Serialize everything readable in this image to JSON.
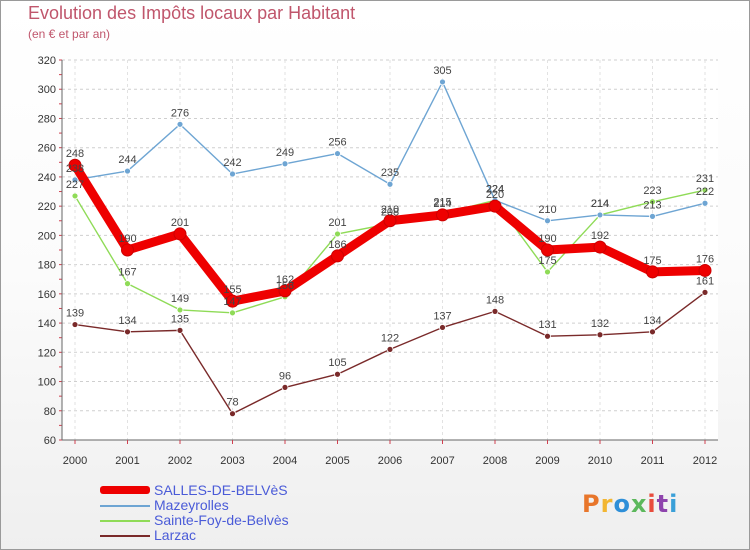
{
  "title": "Evolution des Impôts locaux par Habitant",
  "subtitle": "(en € et par an)",
  "logo_text": "Proxiti",
  "logo_colors": [
    "#e8762b",
    "#f2b632",
    "#2e8fd8",
    "#5cb85c",
    "#e84c3d",
    "#8e44ad",
    "#3aa0d8"
  ],
  "chart_data": {
    "type": "line",
    "title": "Evolution des Impôts locaux par Habitant",
    "subtitle": "(en € et par an)",
    "xlabel": "",
    "ylabel": "",
    "ylim": [
      60,
      320
    ],
    "yticks": [
      60,
      80,
      100,
      120,
      140,
      160,
      180,
      200,
      220,
      240,
      260,
      280,
      300,
      320
    ],
    "categories": [
      "2000",
      "2001",
      "2002",
      "2003",
      "2004",
      "2005",
      "2006",
      "2007",
      "2008",
      "2009",
      "2010",
      "2011",
      "2012"
    ],
    "grid": "horizontal dashed",
    "legend_position": "bottom-left",
    "series": [
      {
        "name": "Larzac",
        "color": "#7a2a2a",
        "values": [
          139,
          134,
          135,
          78,
          96,
          105,
          122,
          137,
          148,
          131,
          132,
          134,
          161
        ],
        "labels": [
          "139",
          "134",
          "135",
          "78",
          "96",
          "105",
          "122",
          "137",
          "148",
          "131",
          "132",
          "134",
          "161"
        ]
      },
      {
        "name": "Sainte-Foy-de-Belvès",
        "color": "#8fdb57",
        "values": [
          227,
          167,
          149,
          147,
          158,
          201,
          208,
          215,
          224,
          175,
          214,
          223,
          231
        ],
        "labels": [
          "227",
          "167",
          "149",
          "147",
          "158",
          "201",
          "208",
          "215",
          "224",
          "175",
          "214",
          "223",
          "231"
        ]
      },
      {
        "name": "Mazeyrolles",
        "color": "#6ea5d3",
        "values": [
          238,
          244,
          276,
          242,
          249,
          256,
          235,
          305,
          224,
          210,
          214,
          213,
          222
        ],
        "labels": [
          "238",
          "244",
          "276",
          "242",
          "249",
          "256",
          "235",
          "305",
          "224",
          "210",
          "214",
          "213",
          "222"
        ]
      },
      {
        "name": "SALLES-DE-BELVèS",
        "color": "#ee0000",
        "values": [
          248,
          190,
          201,
          155,
          162,
          186,
          210,
          214,
          220,
          190,
          192,
          175,
          176
        ],
        "labels": [
          "248",
          "190",
          "201",
          "155",
          "162",
          "186",
          "210",
          "214",
          "220",
          "190",
          "192",
          "175",
          "176"
        ]
      }
    ]
  },
  "legend": [
    {
      "label": "SALLES-DE-BELVèS",
      "color": "#ee0000"
    },
    {
      "label": "Mazeyrolles",
      "color": "#6ea5d3"
    },
    {
      "label": "Sainte-Foy-de-Belvès",
      "color": "#8fdb57"
    },
    {
      "label": "Larzac",
      "color": "#7a2a2a"
    }
  ]
}
